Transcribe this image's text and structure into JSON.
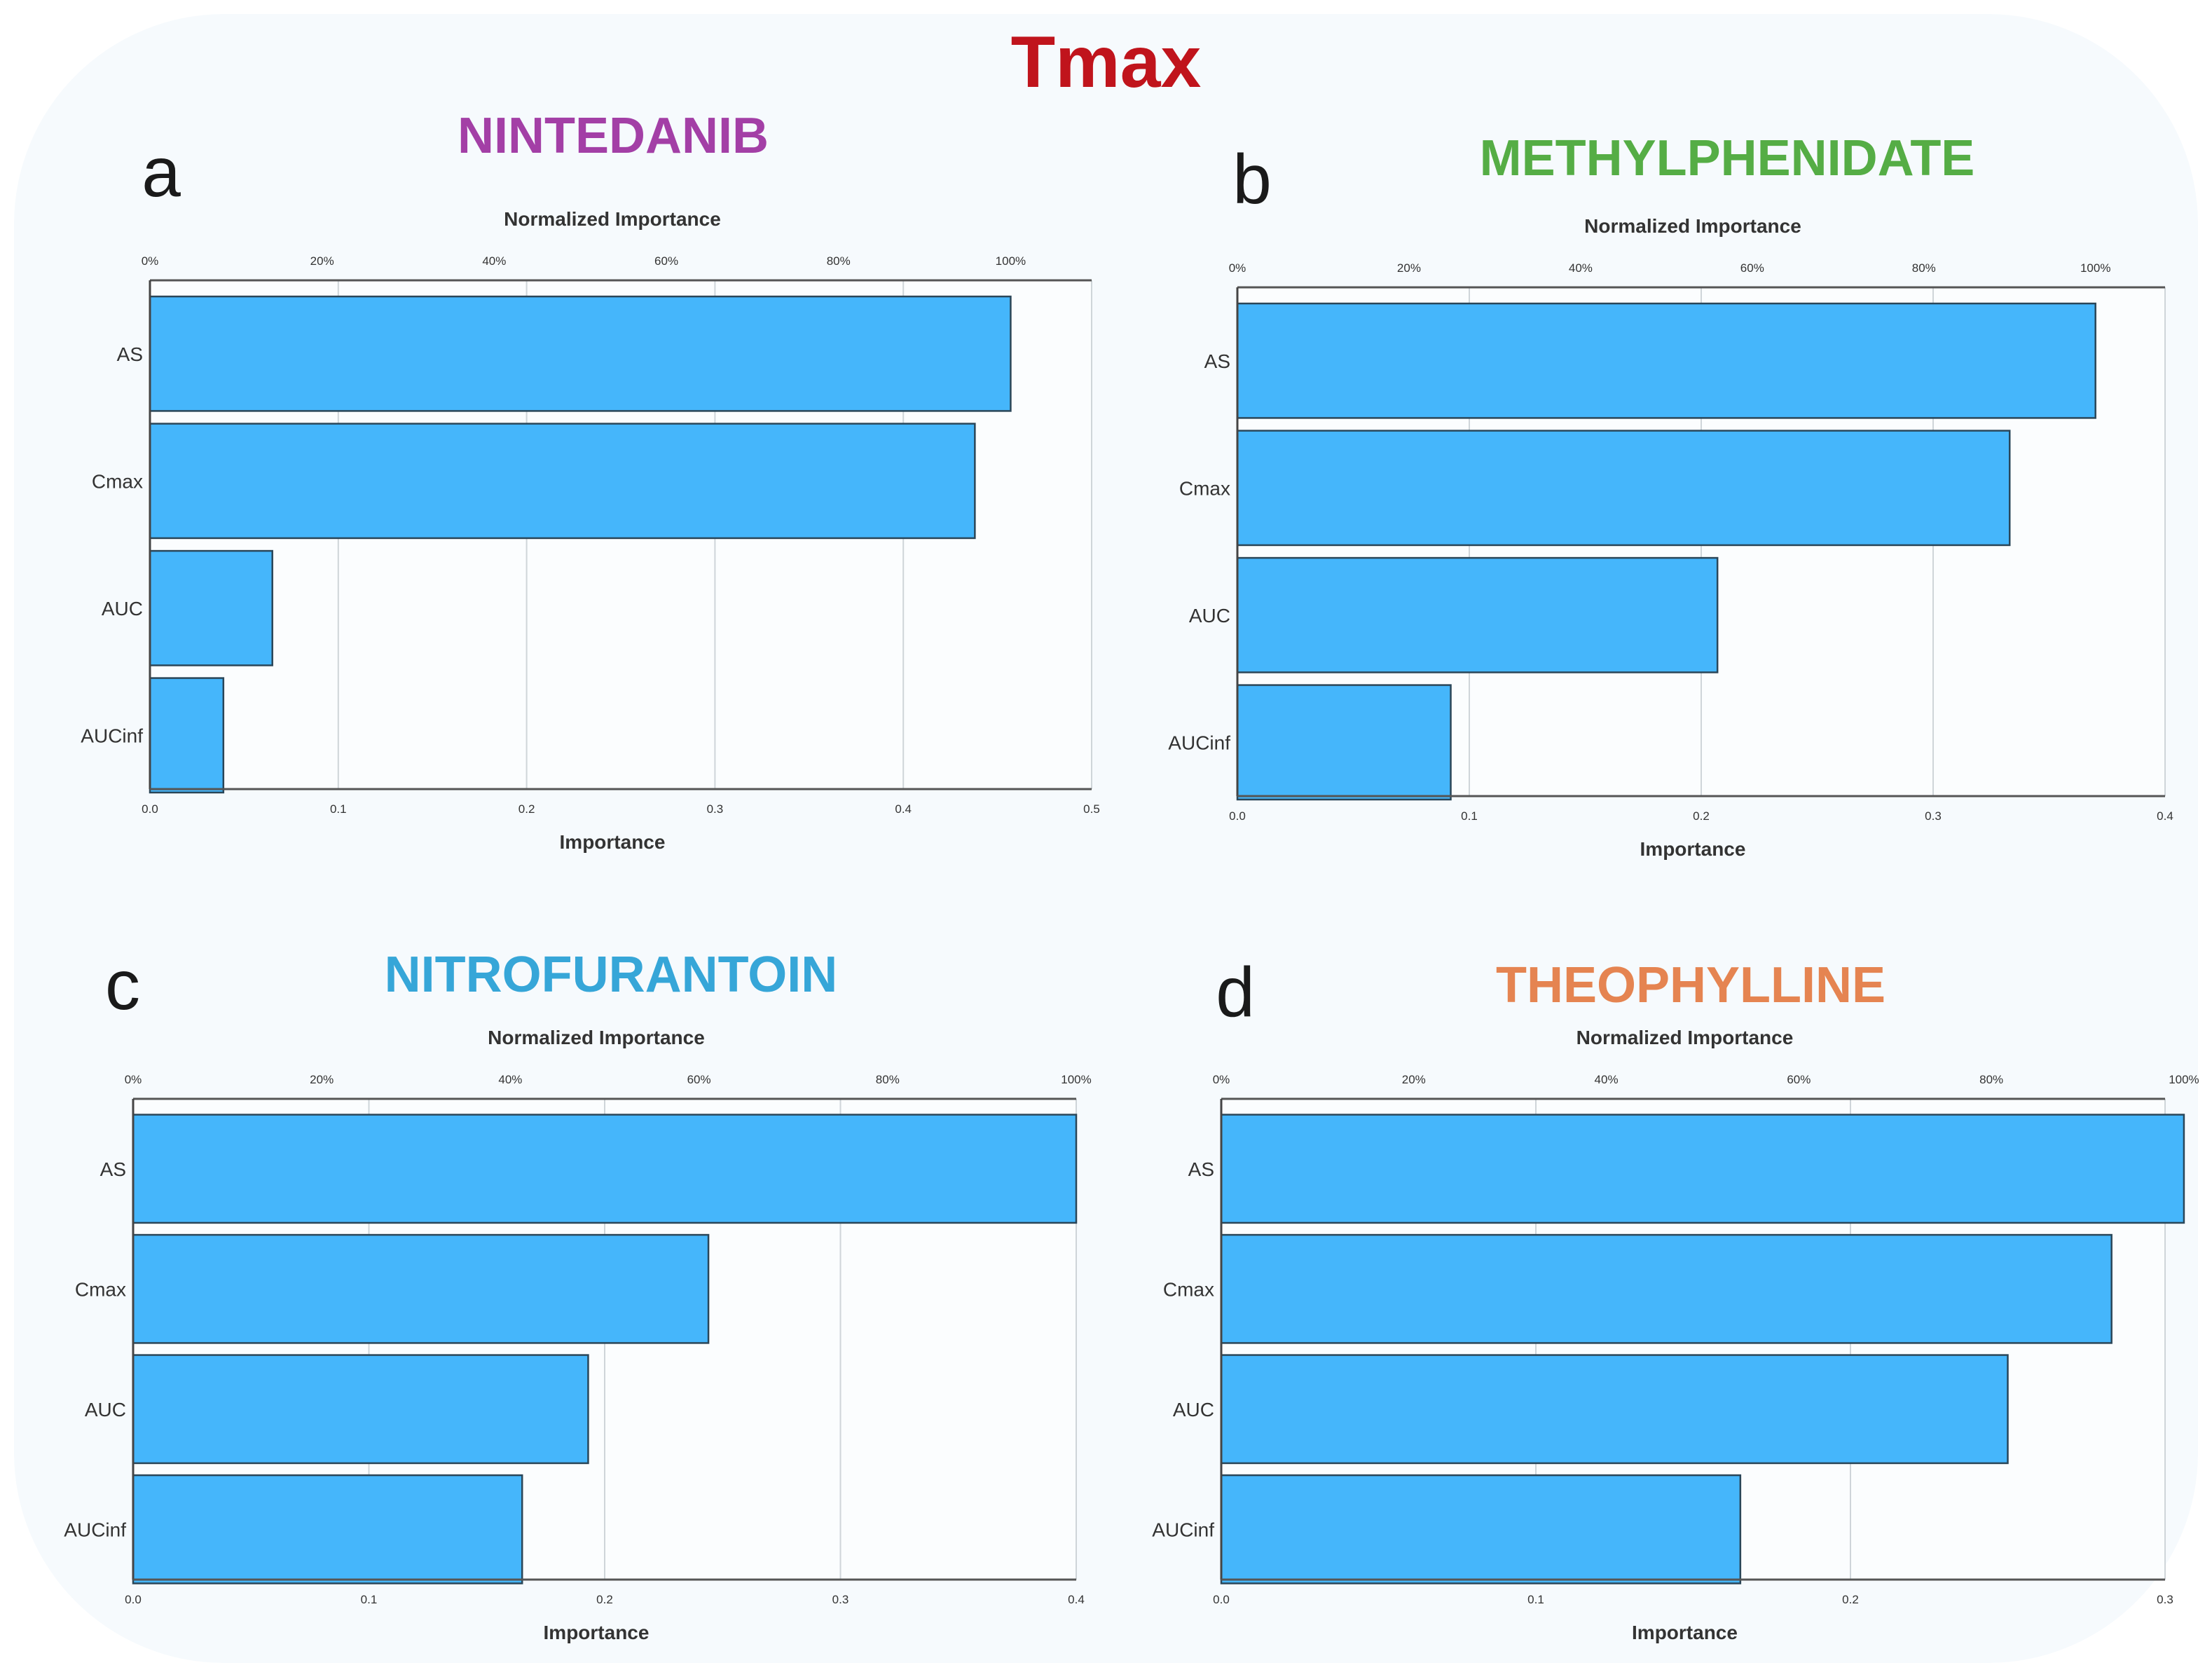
{
  "figure_title": "Tmax",
  "chart_data": [
    {
      "type": "bar",
      "orientation": "horizontal",
      "panel": "a",
      "title": "NINTEDANIB",
      "title_color": "#a33fa6",
      "bar_color": "#45b6fb",
      "categories": [
        "AS",
        "Cmax",
        "AUC",
        "AUCinf"
      ],
      "values": [
        0.457,
        0.438,
        0.065,
        0.039
      ],
      "xlabel": "Importance",
      "top_axis_label": "Normalized Importance",
      "xlim": [
        0,
        0.5
      ],
      "xticks": [
        0.0,
        0.1,
        0.2,
        0.3,
        0.4,
        0.5
      ],
      "xtick_labels": [
        "0.0",
        "0.1",
        "0.2",
        "0.3",
        "0.4",
        "0.5"
      ],
      "top_tick_labels": [
        "0%",
        "20%",
        "40%",
        "60%",
        "80%",
        "100%"
      ],
      "grid": true
    },
    {
      "type": "bar",
      "orientation": "horizontal",
      "panel": "b",
      "title": "METHYLPHENIDATE",
      "title_color": "#55ad45",
      "bar_color": "#45b6fb",
      "categories": [
        "AS",
        "Cmax",
        "AUC",
        "AUCinf"
      ],
      "values": [
        0.37,
        0.333,
        0.207,
        0.092
      ],
      "xlabel": "Importance",
      "top_axis_label": "Normalized Importance",
      "xlim": [
        0,
        0.4
      ],
      "xticks": [
        0.0,
        0.1,
        0.2,
        0.3,
        0.4
      ],
      "xtick_labels": [
        "0.0",
        "0.1",
        "0.2",
        "0.3",
        "0.4"
      ],
      "top_tick_labels": [
        "0%",
        "20%",
        "40%",
        "60%",
        "80%",
        "100%"
      ],
      "grid": true
    },
    {
      "type": "bar",
      "orientation": "horizontal",
      "panel": "c",
      "title": "NITROFURANTOIN",
      "title_color": "#36a6d8",
      "bar_color": "#45b6fb",
      "categories": [
        "AS",
        "Cmax",
        "AUC",
        "AUCinf"
      ],
      "values": [
        0.4,
        0.244,
        0.193,
        0.165
      ],
      "xlabel": "Importance",
      "top_axis_label": "Normalized Importance",
      "xlim": [
        0,
        0.4
      ],
      "xticks": [
        0.0,
        0.1,
        0.2,
        0.3,
        0.4
      ],
      "xtick_labels": [
        "0.0",
        "0.1",
        "0.2",
        "0.3",
        "0.4"
      ],
      "top_tick_labels": [
        "0%",
        "20%",
        "40%",
        "60%",
        "80%",
        "100%"
      ],
      "grid": true
    },
    {
      "type": "bar",
      "orientation": "horizontal",
      "panel": "d",
      "title": "THEOPHYLLINE",
      "title_color": "#e58451",
      "bar_color": "#45b6fb",
      "categories": [
        "AS",
        "Cmax",
        "AUC",
        "AUCinf"
      ],
      "values": [
        0.306,
        0.283,
        0.25,
        0.165
      ],
      "xlabel": "Importance",
      "top_axis_label": "Normalized Importance",
      "xlim": [
        0,
        0.3
      ],
      "xticks": [
        0.0,
        0.1,
        0.2,
        0.3
      ],
      "xtick_labels": [
        "0.0",
        "0.1",
        "0.2",
        "0.3"
      ],
      "top_tick_labels": [
        "0%",
        "20%",
        "40%",
        "60%",
        "80%",
        "100%"
      ],
      "grid": true
    }
  ]
}
